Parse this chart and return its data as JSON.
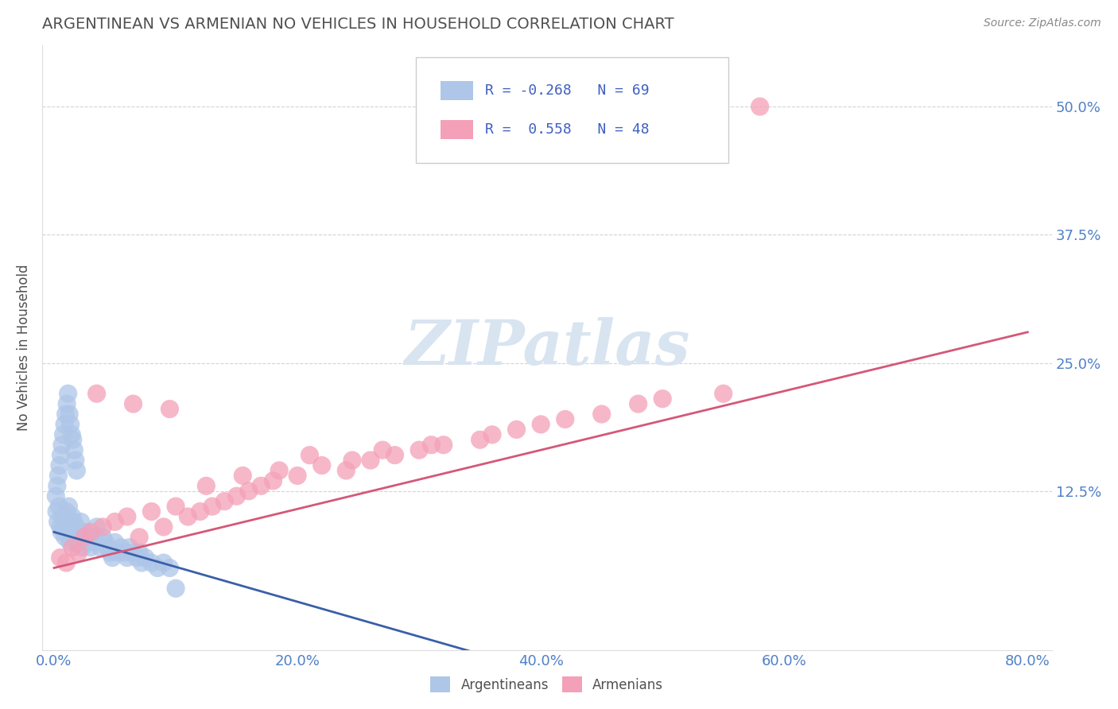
{
  "title": "ARGENTINEAN VS ARMENIAN NO VEHICLES IN HOUSEHOLD CORRELATION CHART",
  "source": "Source: ZipAtlas.com",
  "ylabel": "No Vehicles in Household",
  "x_tick_labels": [
    "0.0%",
    "20.0%",
    "40.0%",
    "60.0%",
    "80.0%"
  ],
  "x_tick_values": [
    0.0,
    20.0,
    40.0,
    60.0,
    80.0
  ],
  "y_tick_labels": [
    "12.5%",
    "25.0%",
    "37.5%",
    "50.0%"
  ],
  "y_tick_values": [
    12.5,
    25.0,
    37.5,
    50.0
  ],
  "xlim": [
    -1.0,
    82.0
  ],
  "ylim": [
    -3.0,
    56.0
  ],
  "legend_labels": [
    "Argentineans",
    "Armenians"
  ],
  "legend_R": [
    "-0.268",
    " 0.558"
  ],
  "legend_N": [
    "69",
    "48"
  ],
  "blue_color": "#aec6e8",
  "pink_color": "#f4a0b8",
  "blue_line_color": "#3a5fa8",
  "pink_line_color": "#d45878",
  "title_color": "#505050",
  "axis_label_color": "#505050",
  "tick_label_color": "#5080c8",
  "legend_text_color": "#4060c0",
  "watermark_color": "#d8e4f0",
  "background_color": "#ffffff",
  "grid_color": "#c8c8c8",
  "argentinean_x": [
    0.2,
    0.3,
    0.4,
    0.5,
    0.6,
    0.7,
    0.8,
    0.9,
    1.0,
    1.1,
    1.2,
    1.3,
    1.4,
    1.5,
    1.6,
    1.7,
    1.8,
    1.9,
    2.0,
    2.1,
    2.2,
    2.3,
    2.5,
    2.6,
    2.8,
    3.0,
    3.2,
    3.4,
    3.5,
    3.8,
    4.0,
    4.2,
    4.4,
    4.6,
    4.8,
    5.0,
    5.2,
    5.5,
    5.8,
    6.0,
    6.2,
    6.5,
    6.8,
    7.0,
    7.2,
    7.5,
    8.0,
    8.5,
    9.0,
    9.5,
    0.15,
    0.25,
    0.35,
    0.45,
    0.55,
    0.65,
    0.75,
    0.85,
    0.95,
    1.05,
    1.15,
    1.25,
    1.35,
    1.45,
    1.55,
    1.65,
    1.75,
    1.85,
    10.0
  ],
  "argentinean_y": [
    10.5,
    9.5,
    11.0,
    9.0,
    8.5,
    10.0,
    9.5,
    8.0,
    10.5,
    9.0,
    11.0,
    7.5,
    8.5,
    10.0,
    9.5,
    8.0,
    9.0,
    7.5,
    8.5,
    8.0,
    9.5,
    7.0,
    8.5,
    8.0,
    7.5,
    7.0,
    8.0,
    7.5,
    9.0,
    7.0,
    8.0,
    7.5,
    7.0,
    6.5,
    6.0,
    7.5,
    6.5,
    7.0,
    6.5,
    6.0,
    7.0,
    6.5,
    6.0,
    6.5,
    5.5,
    6.0,
    5.5,
    5.0,
    5.5,
    5.0,
    12.0,
    13.0,
    14.0,
    15.0,
    16.0,
    17.0,
    18.0,
    19.0,
    20.0,
    21.0,
    22.0,
    20.0,
    19.0,
    18.0,
    17.5,
    16.5,
    15.5,
    14.5,
    3.0
  ],
  "armenian_x": [
    0.5,
    1.0,
    1.5,
    2.0,
    2.5,
    3.0,
    4.0,
    5.0,
    6.0,
    7.0,
    8.0,
    9.0,
    10.0,
    11.0,
    12.0,
    13.0,
    14.0,
    15.0,
    16.0,
    17.0,
    18.0,
    20.0,
    22.0,
    24.0,
    26.0,
    28.0,
    30.0,
    32.0,
    35.0,
    38.0,
    40.0,
    42.0,
    45.0,
    48.0,
    50.0,
    55.0,
    3.5,
    6.5,
    9.5,
    12.5,
    15.5,
    18.5,
    21.0,
    24.5,
    27.0,
    31.0,
    36.0,
    58.0
  ],
  "armenian_y": [
    6.0,
    5.5,
    7.0,
    6.5,
    8.0,
    8.5,
    9.0,
    9.5,
    10.0,
    8.0,
    10.5,
    9.0,
    11.0,
    10.0,
    10.5,
    11.0,
    11.5,
    12.0,
    12.5,
    13.0,
    13.5,
    14.0,
    15.0,
    14.5,
    15.5,
    16.0,
    16.5,
    17.0,
    17.5,
    18.5,
    19.0,
    19.5,
    20.0,
    21.0,
    21.5,
    22.0,
    22.0,
    21.0,
    20.5,
    13.0,
    14.0,
    14.5,
    16.0,
    15.5,
    16.5,
    17.0,
    18.0,
    50.0
  ]
}
